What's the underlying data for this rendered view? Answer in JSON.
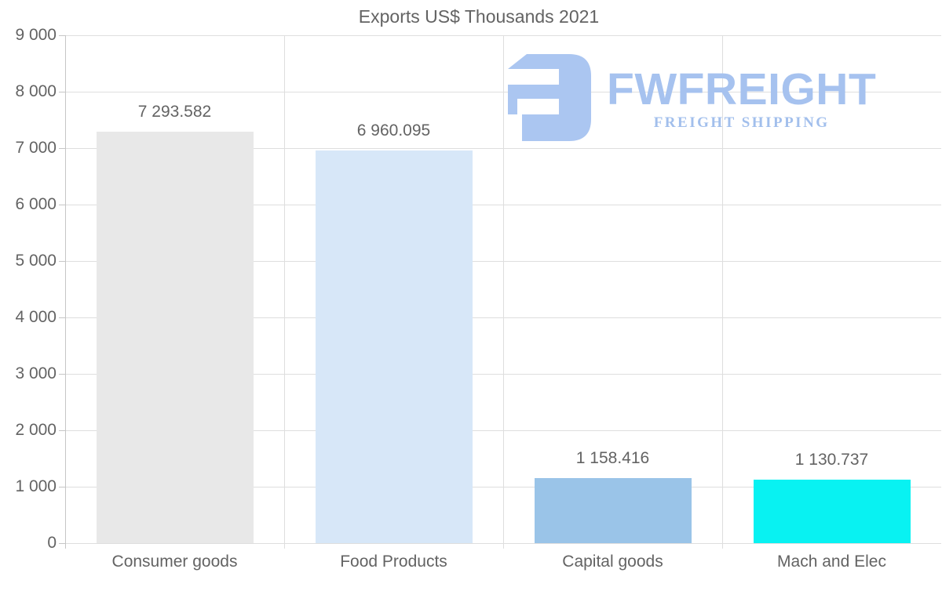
{
  "chart": {
    "title": "Exports US$ Thousands 2021"
  },
  "chart_data": {
    "type": "bar",
    "title": "Exports US$ Thousands 2021",
    "categories": [
      "Consumer goods",
      "Food Products",
      "Capital goods",
      "Mach and Elec"
    ],
    "values": [
      7293.582,
      6960.095,
      1158.416,
      1130.737
    ],
    "value_labels": [
      "7 293.582",
      "6 960.095",
      "1 158.416",
      "1 130.737"
    ],
    "bar_colors": [
      "#e8e8e8",
      "#d7e7f8",
      "#9ac4e8",
      "#08f2f2"
    ],
    "xlabel": "",
    "ylabel": "",
    "ylim": [
      0,
      9000
    ],
    "y_tick_step": 1000,
    "y_tick_labels": [
      "0",
      "1 000",
      "2 000",
      "3 000",
      "4 000",
      "5 000",
      "6 000",
      "7 000",
      "8 000",
      "9 000"
    ],
    "grid": true,
    "legend_position": "none"
  },
  "logo": {
    "name": "FWFREIGHT",
    "subtitle": "FREIGHT SHIPPING",
    "icon_color": "#abc6f1",
    "text_color": "#a6c2ef"
  },
  "colors": {
    "text": "#636363",
    "gridline": "#dedede",
    "axis": "#c6c6c6"
  }
}
